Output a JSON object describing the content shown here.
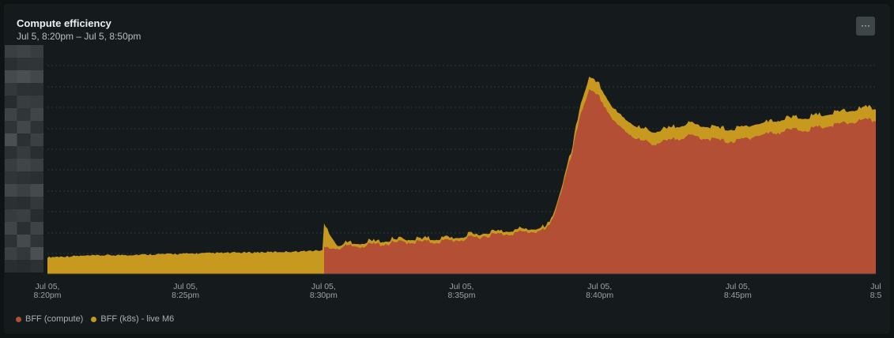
{
  "header": {
    "title": "Compute efficiency",
    "subtitle": "Jul 5, 8:20pm – Jul 5, 8:50pm",
    "menu_label": "···"
  },
  "chart_data": {
    "type": "area",
    "stacked": true,
    "title": "Compute efficiency",
    "subtitle": "Jul 5, 8:20pm – Jul 5, 8:50pm",
    "x_ticks": [
      {
        "line1": "Jul 05,",
        "line2": "8:20pm",
        "minute": 0
      },
      {
        "line1": "Jul 05,",
        "line2": "8:25pm",
        "minute": 5
      },
      {
        "line1": "Jul 05,",
        "line2": "8:30pm",
        "minute": 10
      },
      {
        "line1": "Jul 05,",
        "line2": "8:35pm",
        "minute": 15
      },
      {
        "line1": "Jul 05,",
        "line2": "8:40pm",
        "minute": 20
      },
      {
        "line1": "Jul 05,",
        "line2": "8:45pm",
        "minute": 25
      },
      {
        "line1": "Jul",
        "line2": "8:5",
        "minute": 30
      }
    ],
    "y_labels_obscured": true,
    "grid": "horizontal dashed",
    "legend_position": "bottom-left",
    "x_unit": "minutes after Jul 5, 8:20pm",
    "series": [
      {
        "name": "BFF (compute)",
        "color": "#b34f35",
        "x": [
          10,
          10.5,
          11,
          11.5,
          12,
          12.5,
          13,
          13.5,
          14,
          14.5,
          15,
          15.5,
          16,
          16.5,
          17,
          17.5,
          18,
          18.2,
          18.5,
          19,
          19.3,
          19.6,
          20,
          20.3,
          20.6,
          21,
          21.5,
          22,
          22.5,
          23,
          23.5,
          24,
          24.5,
          25,
          25.5,
          26,
          26.5,
          27,
          27.5,
          28,
          28.5,
          29,
          29.5,
          30
        ],
        "values": [
          0.11,
          0.115,
          0.12,
          0.125,
          0.13,
          0.135,
          0.14,
          0.14,
          0.14,
          0.145,
          0.15,
          0.16,
          0.17,
          0.175,
          0.18,
          0.185,
          0.19,
          0.21,
          0.32,
          0.52,
          0.7,
          0.8,
          0.77,
          0.71,
          0.65,
          0.62,
          0.58,
          0.57,
          0.58,
          0.6,
          0.6,
          0.59,
          0.58,
          0.58,
          0.6,
          0.61,
          0.62,
          0.63,
          0.63,
          0.64,
          0.65,
          0.66,
          0.67,
          0.67
        ]
      },
      {
        "name": "BFF (k8s) - live M6",
        "color": "#c79a1f",
        "x": [
          0,
          1,
          2,
          3,
          4,
          5,
          6,
          7,
          8,
          9,
          10,
          10.5,
          11,
          11.5,
          12,
          12.5,
          13,
          13.5,
          14,
          14.5,
          15,
          15.5,
          16,
          16.5,
          17,
          17.5,
          18,
          18.2,
          18.5,
          19,
          19.3,
          19.6,
          20,
          20.3,
          20.6,
          21,
          21.5,
          22,
          22.5,
          23,
          23.5,
          24,
          24.5,
          25,
          25.5,
          26,
          26.5,
          27,
          27.5,
          28,
          28.5,
          29,
          29.5,
          30
        ],
        "values": [
          0.07,
          0.075,
          0.078,
          0.08,
          0.083,
          0.085,
          0.088,
          0.09,
          0.092,
          0.095,
          0.1,
          0.01,
          0.01,
          0.01,
          0.01,
          0.01,
          0.01,
          0.01,
          0.01,
          0.01,
          0.01,
          0.01,
          0.01,
          0.01,
          0.01,
          0.01,
          0.01,
          0.01,
          0.01,
          0.02,
          0.04,
          0.05,
          0.05,
          0.05,
          0.05,
          0.05,
          0.05,
          0.05,
          0.05,
          0.05,
          0.05,
          0.05,
          0.05,
          0.05,
          0.05,
          0.05,
          0.05,
          0.05,
          0.05,
          0.05,
          0.05,
          0.05,
          0.05,
          0.05
        ]
      }
    ]
  }
}
